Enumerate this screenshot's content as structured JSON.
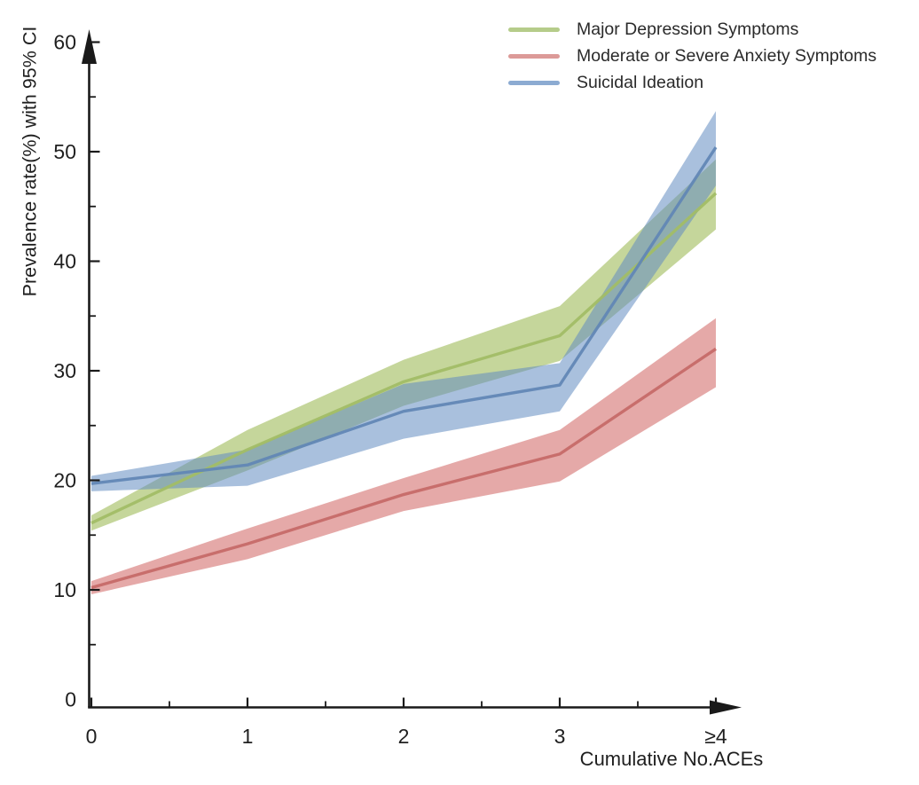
{
  "figure": {
    "background": "#ffffff",
    "axis_color": "#1a1a1a",
    "text_color": "#1f1f1f"
  },
  "chart_data": {
    "type": "line",
    "title": "",
    "xlabel": "Cumulative No.ACEs",
    "ylabel": "Prevalence rate(%) with 95% CI",
    "x_categories": [
      "0",
      "1",
      "2",
      "3",
      "≥4"
    ],
    "x_values": [
      0,
      1,
      2,
      3,
      4
    ],
    "ylim": [
      0,
      60
    ],
    "y_major_ticks": [
      0,
      10,
      20,
      30,
      40,
      50,
      60
    ],
    "y_minor_ticks": [
      5,
      15,
      25,
      35,
      45,
      55
    ],
    "x_minor_ticks": [
      0.5,
      1.5,
      2.5,
      3.5
    ],
    "grid": false,
    "legend_position": "top-center-right-inside",
    "band_style": "95% confidence interval shaded band",
    "series": [
      {
        "name": "Major Depression Symptoms",
        "line_color": "#a2bd66",
        "band_color": "rgba(150,180,72,0.55)",
        "legend_color": "#b5cc8a",
        "mean": [
          16.1,
          22.8,
          29.0,
          33.2,
          46.2
        ],
        "ci_lower": [
          15.4,
          20.9,
          26.8,
          30.9,
          42.9
        ],
        "ci_upper": [
          16.8,
          24.6,
          31.0,
          35.9,
          49.3
        ]
      },
      {
        "name": "Moderate or Severe Anxiety Symptoms",
        "line_color": "#c66a68",
        "band_color": "rgba(204,84,82,0.5)",
        "legend_color": "#dc9a98",
        "mean": [
          10.2,
          14.2,
          18.7,
          22.4,
          32.0
        ],
        "ci_lower": [
          9.6,
          12.8,
          17.2,
          19.9,
          28.5
        ],
        "ci_upper": [
          10.8,
          15.6,
          20.2,
          24.6,
          34.8
        ]
      },
      {
        "name": "Suicidal Ideation",
        "line_color": "#6287b5",
        "band_color": "rgba(99,140,193,0.55)",
        "legend_color": "#8cabd2",
        "mean": [
          19.7,
          21.4,
          26.3,
          28.7,
          50.4
        ],
        "ci_lower": [
          19.0,
          19.5,
          23.8,
          26.3,
          46.9
        ],
        "ci_upper": [
          20.4,
          22.8,
          28.8,
          30.7,
          53.7
        ]
      }
    ]
  }
}
